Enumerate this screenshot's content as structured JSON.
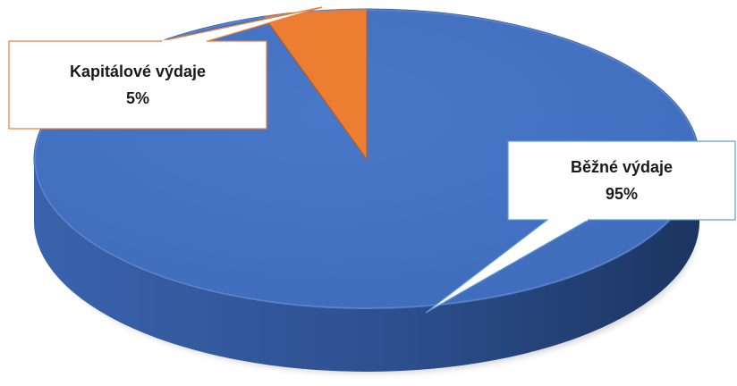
{
  "chart_data": {
    "type": "pie",
    "title": "",
    "categories": [
      "Běžné výdaje",
      "Kapitálové výdaje"
    ],
    "values": [
      95,
      5
    ],
    "labels": [
      {
        "name": "Běžné výdaje",
        "percent": "95%"
      },
      {
        "name": "Kapitálové výdaje",
        "percent": "5%"
      }
    ],
    "colors": [
      "#4472C4",
      "#ED7D31"
    ],
    "edge_color_blue": "#2F528F",
    "edge_color_orange": "#C55A11",
    "three_d": true,
    "legend": "none",
    "data_labels": "callouts"
  }
}
